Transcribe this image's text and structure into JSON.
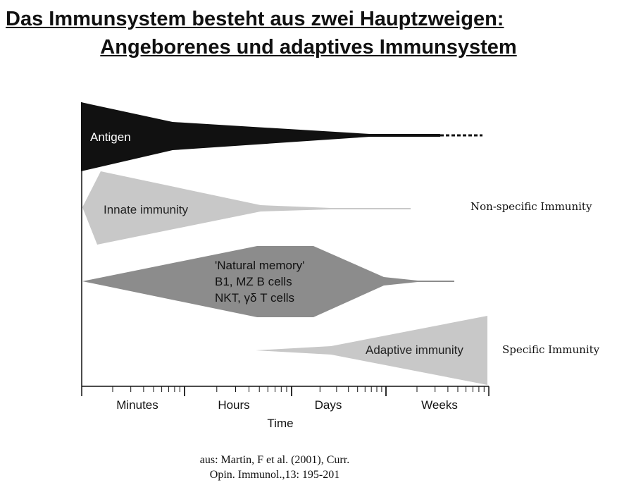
{
  "title": {
    "line1": "Das Immunsystem besteht aus zwei Hauptzweigen: ",
    "line2": "Angeborenes und adaptives Immunsystem"
  },
  "shapes": {
    "antigen": "Antigen",
    "innate": "Innate immunity",
    "natural_memory": [
      "'Natural memory'",
      "B1, MZ B cells",
      "NKT, γδ T cells"
    ],
    "adaptive": "Adaptive immunity"
  },
  "colors": {
    "antigen": "#111111",
    "innate": "#c8c8c8",
    "natural_memory": "#8c8c8c",
    "adaptive": "#c8c8c8"
  },
  "axis": {
    "ticks": [
      "Minutes",
      "Hours",
      "Days",
      "Weeks"
    ],
    "label": "Time"
  },
  "side_labels": {
    "non_specific": "Non-specific Immunity",
    "specific": "Specific Immunity"
  },
  "citation": {
    "line1": "aus: Martin, F et al. (2001), Curr.",
    "line2": "Opin. Immunol.,13: 195-201"
  }
}
